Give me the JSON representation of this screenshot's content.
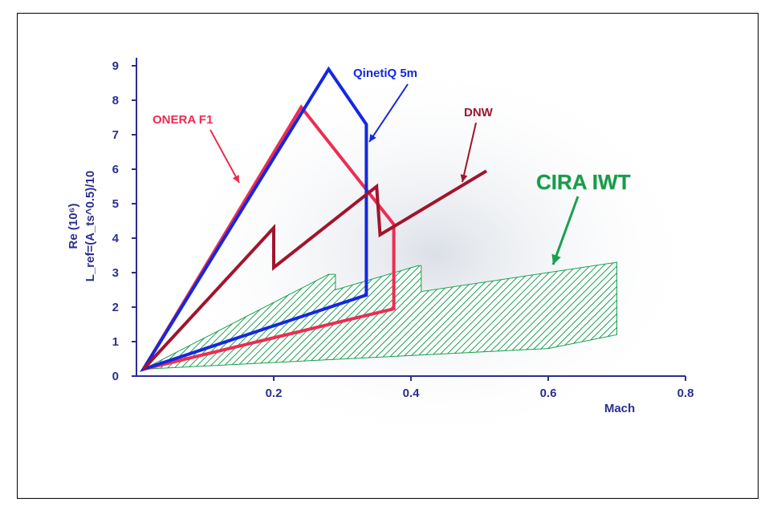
{
  "chart_data": {
    "type": "line",
    "xlabel": "Mach",
    "ylabel": "Re (10⁶)",
    "ylabel2": "L_ref=(A_ts^0.5)/10",
    "xlim": [
      0,
      0.8
    ],
    "ylim": [
      0,
      9
    ],
    "x_ticks": [
      "0.2",
      "0.4",
      "0.6",
      "0.8"
    ],
    "y_ticks": [
      "0",
      "1",
      "2",
      "3",
      "4",
      "5",
      "6",
      "7",
      "8",
      "9"
    ],
    "grid": false,
    "colors": {
      "QinetiQ 5m": "#1428e0",
      "DNW": "#a1142c",
      "ONERA F1": "#ef2b52",
      "CIRA IWT": "#1aa050"
    },
    "series": [
      {
        "name": "ONERA F1",
        "x": [
          0.01,
          0.24,
          0.375,
          0.375,
          0.01
        ],
        "y": [
          0.2,
          7.8,
          4.4,
          1.95,
          0.2
        ]
      },
      {
        "name": "QinetiQ 5m",
        "x": [
          0.01,
          0.28,
          0.335,
          0.335,
          0.01
        ],
        "y": [
          0.2,
          8.9,
          7.3,
          2.35,
          0.2
        ]
      },
      {
        "name": "DNW",
        "x": [
          0.01,
          0.2,
          0.2,
          0.35,
          0.355,
          0.51
        ],
        "y": [
          0.2,
          4.3,
          3.15,
          5.5,
          4.1,
          5.95
        ]
      },
      {
        "name": "CIRA IWT",
        "x": [
          0.01,
          0.28,
          0.29,
          0.29,
          0.41,
          0.415,
          0.415,
          0.7,
          0.7,
          0.6,
          0.01
        ],
        "y": [
          0.2,
          2.95,
          2.95,
          2.5,
          3.2,
          3.2,
          2.45,
          3.3,
          1.2,
          0.8,
          0.2
        ]
      }
    ],
    "annotations": [
      {
        "text": "QinetiQ  5m",
        "series": "QinetiQ 5m"
      },
      {
        "text": "DNW",
        "series": "DNW"
      },
      {
        "text": "ONERA F1",
        "series": "ONERA F1"
      },
      {
        "text": "CIRA IWT",
        "series": "CIRA IWT"
      }
    ]
  }
}
